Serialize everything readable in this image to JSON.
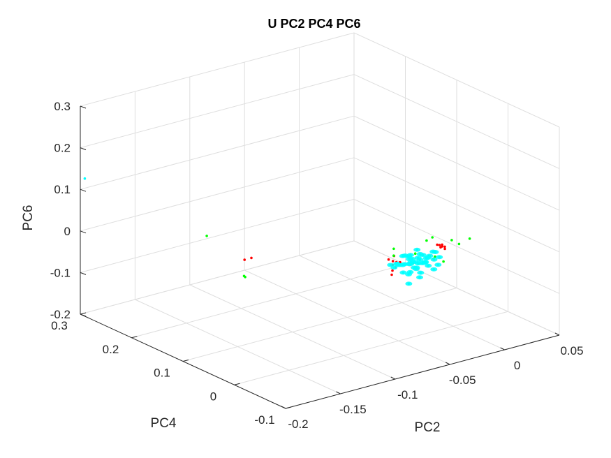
{
  "chart_data": {
    "type": "scatter",
    "title": "U PC2 PC4 PC6",
    "xlabel": "PC2",
    "ylabel": "PC4",
    "zlabel": "PC6",
    "xlim": [
      -0.2,
      0.05
    ],
    "ylim": [
      -0.1,
      0.3
    ],
    "zlim": [
      -0.2,
      0.3
    ],
    "xticks": [
      -0.2,
      -0.15,
      -0.1,
      -0.05,
      0,
      0.05
    ],
    "xtick_labels": [
      "-0.2",
      "-0.15",
      "-0.1",
      "-0.05",
      "0",
      "0.05"
    ],
    "yticks": [
      -0.1,
      0,
      0.1,
      0.2,
      0.3
    ],
    "ytick_labels": [
      "-0.1",
      "0",
      "0.1",
      "0.2",
      "0.3"
    ],
    "zticks": [
      -0.2,
      -0.1,
      0,
      0.1,
      0.2,
      0.3
    ],
    "ztick_labels": [
      "-0.2",
      "-0.1",
      "0",
      "0.1",
      "0.2",
      "0.3"
    ],
    "grid": true,
    "series": [
      {
        "color": "#ff0000",
        "points": [
          [
            -0.118,
            0.155,
            -0.045
          ],
          [
            -0.108,
            0.163,
            -0.052
          ],
          [
            -0.04,
            0.03,
            -0.02
          ],
          [
            -0.038,
            0.032,
            -0.05
          ],
          [
            -0.042,
            0.028,
            -0.03
          ],
          [
            -0.036,
            0.034,
            -0.04
          ],
          [
            -0.044,
            0.026,
            -0.06
          ],
          [
            -0.037,
            0.025,
            -0.035
          ],
          [
            -0.039,
            0.035,
            -0.045
          ],
          [
            -0.041,
            0.031,
            -0.055
          ],
          [
            -0.045,
            0.03,
            -0.025
          ],
          [
            -0.035,
            0.029,
            -0.038
          ],
          [
            0.003,
            0.028,
            -0.024
          ],
          [
            0.004,
            0.03,
            -0.028
          ],
          [
            0.002,
            0.026,
            -0.02
          ],
          [
            0.005,
            0.027,
            -0.033
          ],
          [
            0.001,
            0.029,
            -0.022
          ],
          [
            0.003,
            0.031,
            -0.03
          ],
          [
            0.004,
            0.025,
            -0.026
          ],
          [
            -0.002,
            0.027,
            -0.018
          ]
        ]
      },
      {
        "color": "#00ff00",
        "points": [
          [
            -0.115,
            0.235,
            -0.035
          ],
          [
            -0.17,
            0.045,
            0.015
          ],
          [
            -0.168,
            0.047,
            0.01
          ],
          [
            -0.052,
            0.005,
            0.02
          ],
          [
            -0.03,
            0.01,
            -0.01
          ],
          [
            -0.005,
            0.03,
            0.0
          ],
          [
            0.015,
            0.0,
            0.0
          ],
          [
            0.008,
            0.02,
            -0.01
          ],
          [
            -0.02,
            0.005,
            -0.02
          ],
          [
            -0.012,
            0.01,
            -0.03
          ],
          [
            -0.018,
            0.0,
            -0.025
          ],
          [
            -0.008,
            0.002,
            -0.04
          ],
          [
            -0.025,
            0.025,
            -0.045
          ],
          [
            -0.015,
            0.02,
            0.005
          ],
          [
            0.01,
            0.01,
            -0.015
          ],
          [
            -0.045,
            0.02,
            -0.01
          ]
        ]
      },
      {
        "color": "#00ffff",
        "points": [
          [
            -0.21,
            0.27,
            0.15
          ],
          [
            -0.025,
            0.015,
            -0.04
          ],
          [
            -0.028,
            0.02,
            -0.03
          ],
          [
            -0.022,
            0.018,
            -0.035
          ],
          [
            -0.03,
            0.012,
            -0.045
          ],
          [
            -0.02,
            0.022,
            -0.025
          ],
          [
            -0.026,
            0.016,
            -0.05
          ],
          [
            -0.032,
            0.018,
            -0.038
          ],
          [
            -0.018,
            0.014,
            -0.032
          ],
          [
            -0.024,
            0.024,
            -0.042
          ],
          [
            -0.034,
            0.01,
            -0.028
          ],
          [
            -0.016,
            0.02,
            -0.046
          ],
          [
            -0.028,
            0.026,
            -0.034
          ],
          [
            -0.022,
            0.008,
            -0.036
          ],
          [
            -0.036,
            0.022,
            -0.04
          ],
          [
            -0.014,
            0.016,
            -0.03
          ],
          [
            -0.03,
            0.03,
            -0.026
          ],
          [
            -0.02,
            0.006,
            -0.044
          ],
          [
            -0.038,
            0.014,
            -0.032
          ],
          [
            -0.012,
            0.012,
            -0.038
          ],
          [
            -0.026,
            0.028,
            -0.048
          ],
          [
            -0.04,
            0.02,
            -0.036
          ],
          [
            -0.01,
            0.018,
            -0.024
          ],
          [
            -0.032,
            0.004,
            -0.042
          ],
          [
            -0.024,
            0.032,
            -0.03
          ],
          [
            -0.042,
            0.008,
            -0.046
          ],
          [
            -0.016,
            0.026,
            -0.052
          ],
          [
            -0.034,
            0.026,
            -0.022
          ],
          [
            -0.008,
            0.01,
            -0.034
          ],
          [
            -0.044,
            0.016,
            -0.028
          ],
          [
            -0.022,
            0.012,
            -0.02
          ],
          [
            -0.028,
            0.004,
            -0.054
          ],
          [
            -0.018,
            0.03,
            -0.04
          ],
          [
            -0.036,
            0.032,
            -0.044
          ],
          [
            -0.012,
            0.004,
            -0.046
          ],
          [
            -0.03,
            0.02,
            -0.06
          ],
          [
            -0.026,
            0.01,
            -0.07
          ],
          [
            -0.035,
            0.012,
            -0.08
          ],
          [
            -0.02,
            0.028,
            -0.018
          ],
          [
            -0.006,
            0.022,
            -0.03
          ],
          [
            -0.046,
            0.024,
            -0.034
          ],
          [
            -0.014,
            0.008,
            -0.058
          ],
          [
            -0.038,
            0.006,
            -0.052
          ],
          [
            -0.024,
            0.036,
            -0.036
          ],
          [
            -0.01,
            0.028,
            -0.044
          ],
          [
            -0.04,
            0.03,
            -0.048
          ]
        ]
      }
    ]
  }
}
